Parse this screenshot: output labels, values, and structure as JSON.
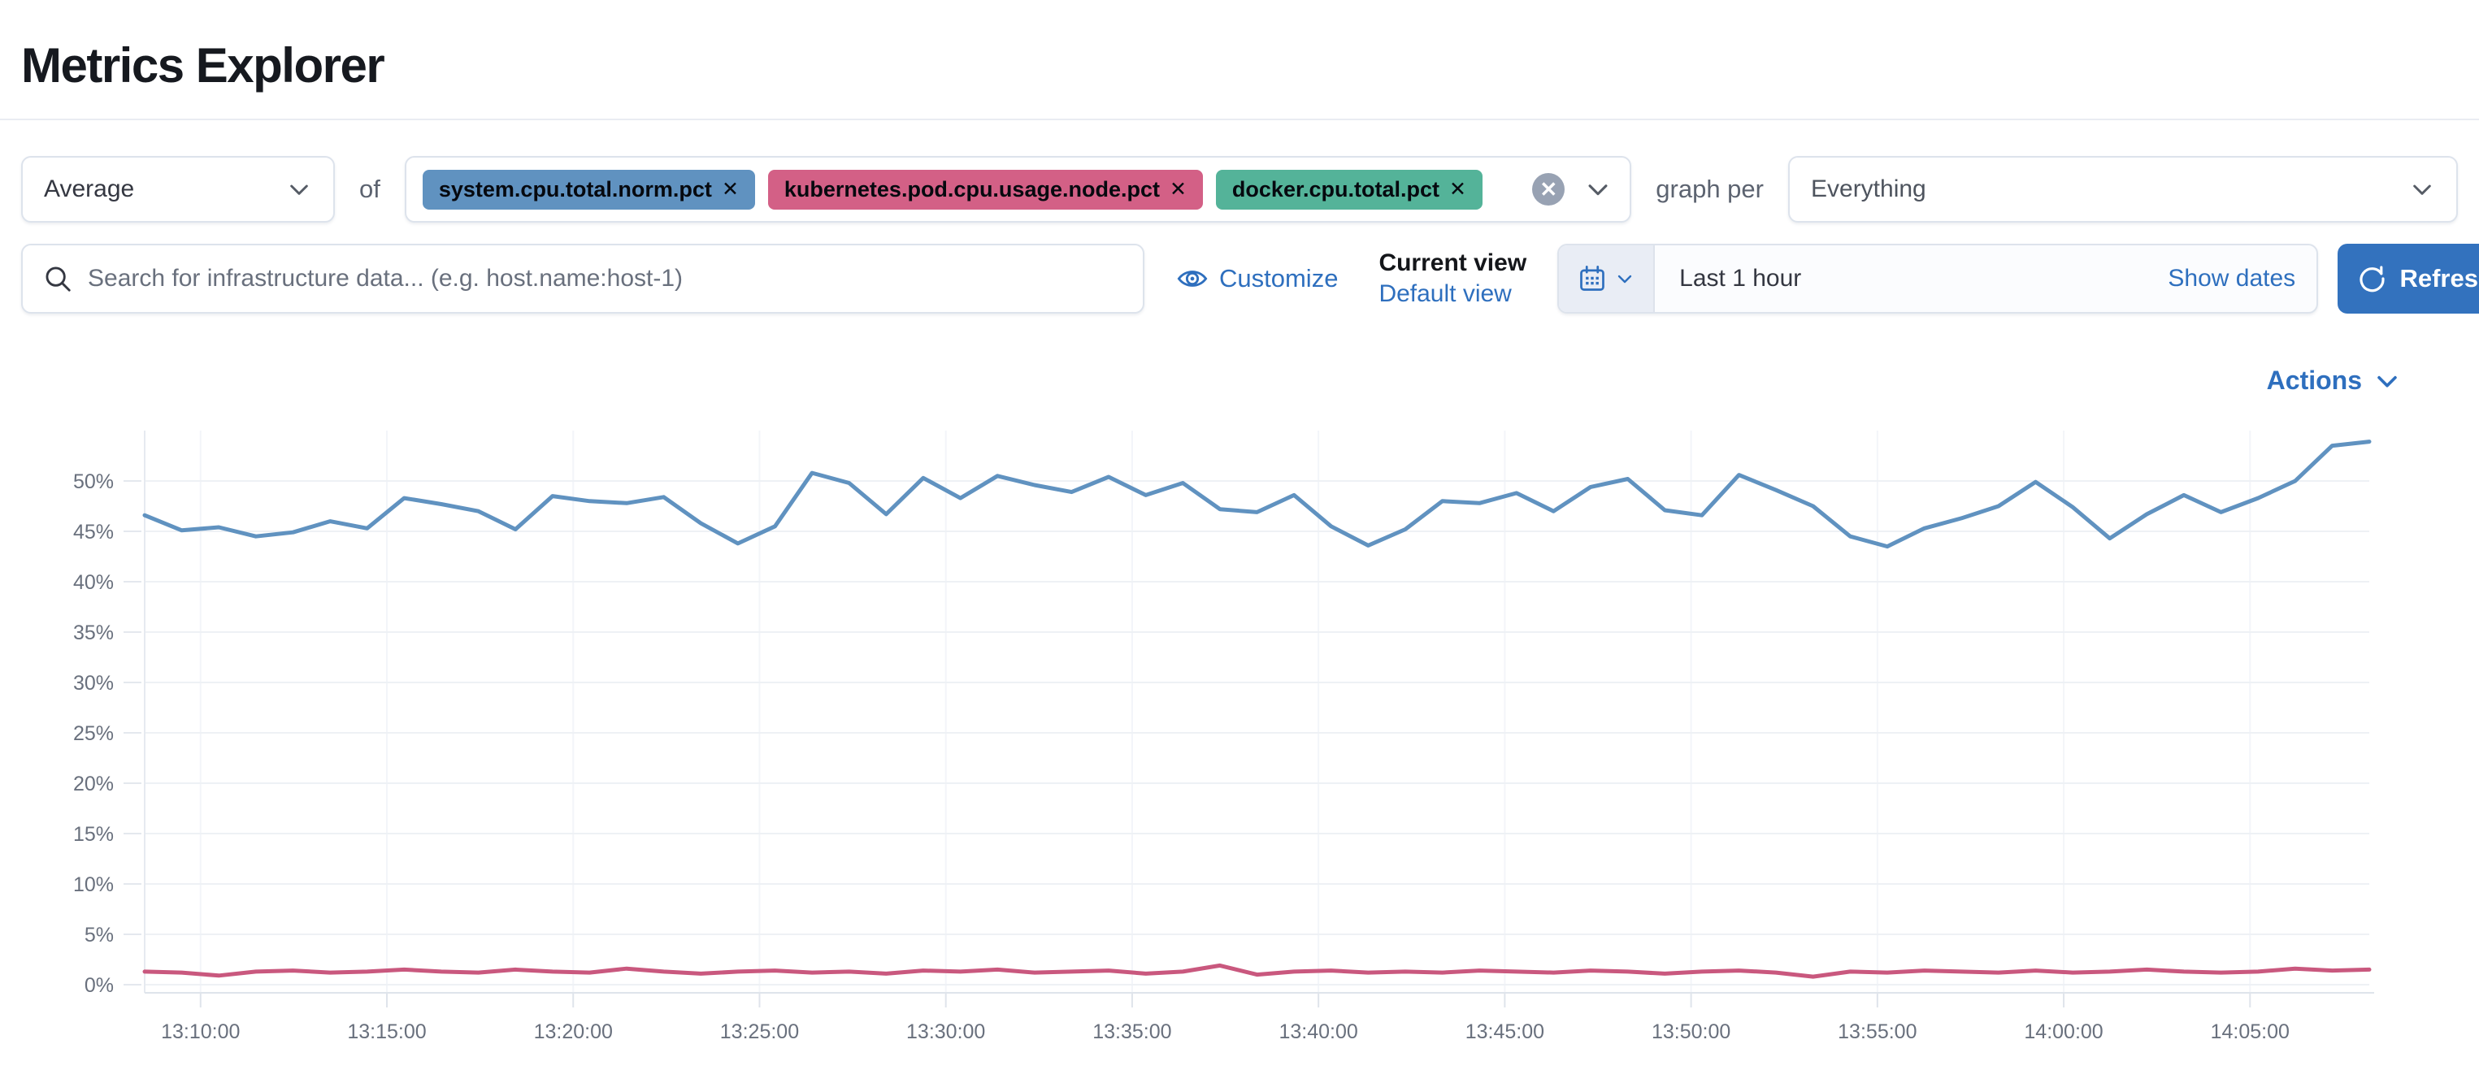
{
  "page": {
    "title": "Metrics Explorer"
  },
  "toolbar": {
    "aggregation": {
      "value": "Average"
    },
    "of_label": "of",
    "metrics": {
      "pills": [
        {
          "label": "system.cpu.total.norm.pct",
          "remove_icon": "✕",
          "color": "#6092C0"
        },
        {
          "label": "kubernetes.pod.cpu.usage.node.pct",
          "remove_icon": "✕",
          "color": "#D36086"
        },
        {
          "label": "docker.cpu.total.pct",
          "remove_icon": "✕",
          "color": "#54B399"
        }
      ],
      "clear_icon": "✕"
    },
    "graph_per_label": "graph per",
    "group_by": {
      "value": "Everything"
    }
  },
  "searchbar": {
    "placeholder": "Search for infrastructure data... (e.g. host.name:host-1)"
  },
  "view_controls": {
    "customize_label": "Customize",
    "current_view_label": "Current view",
    "default_view_label": "Default view"
  },
  "datepicker": {
    "value": "Last 1 hour",
    "show_dates_label": "Show dates",
    "refresh_label": "Refresh"
  },
  "actions": {
    "label": "Actions"
  },
  "colors": {
    "link_blue": "#2e6fbe",
    "refresh_button": "#3372be",
    "line_blue": "#6092C0",
    "line_pink": "#C9587E"
  },
  "chart_data": {
    "type": "line",
    "title": "",
    "legend": false,
    "grid": true,
    "x_axis": {
      "unit": "time (hh:mm:ss)",
      "range_minutes_after_13_00": [
        8.5,
        68.2
      ],
      "tick_minutes": [
        10,
        15,
        20,
        25,
        30,
        35,
        40,
        45,
        50,
        55,
        60,
        65
      ],
      "tick_labels": [
        "13:10:00",
        "13:15:00",
        "13:20:00",
        "13:25:00",
        "13:30:00",
        "13:35:00",
        "13:40:00",
        "13:45:00",
        "13:50:00",
        "13:55:00",
        "14:00:00",
        "14:05:00"
      ]
    },
    "y_axis": {
      "unit": "%",
      "lim": [
        0,
        55
      ],
      "tick_values": [
        0,
        5,
        10,
        15,
        20,
        25,
        30,
        35,
        40,
        45,
        50
      ],
      "tick_labels": [
        "0%",
        "5%",
        "10%",
        "15%",
        "20%",
        "25%",
        "30%",
        "35%",
        "40%",
        "45%",
        "50%"
      ]
    },
    "series": [
      {
        "name": "blue-line",
        "color": "#6092C0",
        "approx_range_pct": [
          43.5,
          54
        ],
        "values": [
          46.6,
          45.1,
          45.4,
          44.5,
          44.9,
          46.0,
          45.3,
          48.3,
          47.7,
          47.0,
          45.2,
          48.5,
          48.0,
          47.8,
          48.4,
          45.8,
          43.8,
          45.5,
          50.8,
          49.8,
          46.7,
          50.3,
          48.3,
          50.5,
          49.6,
          48.9,
          50.4,
          48.6,
          49.8,
          47.2,
          46.9,
          48.6,
          45.5,
          43.6,
          45.2,
          48.0,
          47.8,
          48.8,
          47.0,
          49.4,
          50.2,
          47.1,
          46.6,
          50.6,
          49.1,
          47.5,
          44.5,
          43.5,
          45.3,
          46.3,
          47.5,
          49.9,
          47.4,
          44.3,
          46.7,
          48.6,
          46.9,
          48.3,
          50.0,
          53.5,
          53.9
        ]
      },
      {
        "name": "pink-line",
        "color": "#C9587E",
        "approx_range_pct": [
          0.8,
          1.9
        ],
        "values": [
          1.3,
          1.2,
          0.9,
          1.3,
          1.4,
          1.2,
          1.3,
          1.5,
          1.3,
          1.2,
          1.5,
          1.3,
          1.2,
          1.6,
          1.3,
          1.1,
          1.3,
          1.4,
          1.2,
          1.3,
          1.1,
          1.4,
          1.3,
          1.5,
          1.2,
          1.3,
          1.4,
          1.1,
          1.3,
          1.9,
          1.0,
          1.3,
          1.4,
          1.2,
          1.3,
          1.2,
          1.4,
          1.3,
          1.2,
          1.4,
          1.3,
          1.1,
          1.3,
          1.4,
          1.2,
          0.8,
          1.3,
          1.2,
          1.4,
          1.3,
          1.2,
          1.4,
          1.2,
          1.3,
          1.5,
          1.3,
          1.2,
          1.3,
          1.6,
          1.4,
          1.5
        ]
      }
    ]
  }
}
